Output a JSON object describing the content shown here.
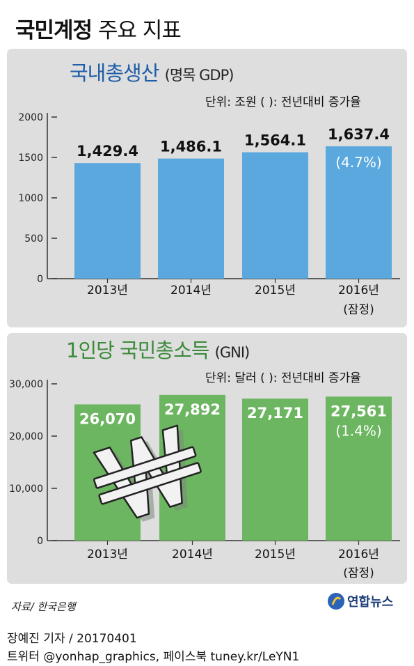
{
  "header": {
    "title_bold": "국민계정",
    "title_rest": "주요 지표"
  },
  "chart_data": [
    {
      "type": "bar",
      "title": "국내총생산",
      "subtitle": "(명목 GDP)",
      "unit_note": "단위: 조원    ( ): 전년대비 증가율",
      "categories": [
        "2013년",
        "2014년",
        "2015년",
        "2016년"
      ],
      "category_notes": [
        "",
        "",
        "",
        "(잠정)"
      ],
      "values": [
        1429.4,
        1486.1,
        1564.1,
        1637.4
      ],
      "value_labels": [
        "1,429.4",
        "1,486.1",
        "1,564.1",
        "1,637.4"
      ],
      "growth_labels": [
        "",
        "",
        "",
        "(4.7%)"
      ],
      "ylim": [
        0,
        2000
      ],
      "yticks": [
        0,
        500,
        1000,
        1500,
        2000
      ],
      "ytick_labels": [
        "0",
        "500",
        "1000",
        "1500",
        "2000"
      ],
      "color": "#5aa8dd",
      "grid": false
    },
    {
      "type": "bar",
      "title": "1인당 국민총소득",
      "subtitle": "(GNI)",
      "unit_note": "단위: 달러    ( ): 전년대비 증가율",
      "categories": [
        "2013년",
        "2014년",
        "2015년",
        "2016년"
      ],
      "category_notes": [
        "",
        "",
        "",
        "(잠정)"
      ],
      "values": [
        26070,
        27892,
        27171,
        27561
      ],
      "value_labels": [
        "26,070",
        "27,892",
        "27,171",
        "27,561"
      ],
      "growth_labels": [
        "",
        "",
        "",
        "(1.4%)"
      ],
      "ylim": [
        0,
        30000
      ],
      "yticks": [
        0,
        10000,
        20000,
        30000
      ],
      "ytick_labels": [
        "0",
        "10,000",
        "20,000",
        "30,000"
      ],
      "color": "#6db661",
      "grid": false
    }
  ],
  "footer": {
    "source": "자료/ 한국은행",
    "logo_text": "연합뉴스",
    "byline": "장예진 기자 / 20170401",
    "social": "트위터 @yonhap_graphics, 페이스북 tuney.kr/LeYN1"
  },
  "colors": {
    "title_blue": "#1f5ea8",
    "title_green": "#3a8a3a",
    "panel": "#dedede"
  }
}
